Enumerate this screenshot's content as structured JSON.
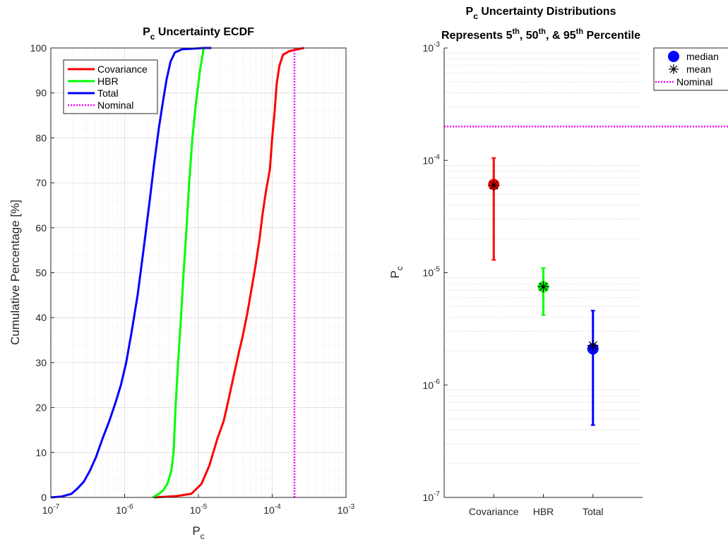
{
  "chart_data": [
    {
      "type": "line",
      "title": "P_c Uncertainty ECDF",
      "xlabel": "P_c",
      "ylabel": "Cumulative Percentage [%]",
      "xscale": "log",
      "xlim": [
        1e-07,
        0.001
      ],
      "ylim": [
        0,
        100
      ],
      "grid": true,
      "x_ticks": [
        "10^-7",
        "10^-6",
        "10^-5",
        "10^-4",
        "10^-3"
      ],
      "y_ticks": [
        "0",
        "10",
        "20",
        "30",
        "40",
        "50",
        "60",
        "70",
        "80",
        "90",
        "100"
      ],
      "legend_position": "top-left",
      "series": [
        {
          "name": "Covariance",
          "color": "#ff0000",
          "points": [
            [
              2.5e-06,
              0
            ],
            [
              5e-06,
              0.3
            ],
            [
              8e-06,
              0.8
            ],
            [
              1.1e-05,
              3
            ],
            [
              1.4e-05,
              7
            ],
            [
              1.8e-05,
              13
            ],
            [
              2.2e-05,
              17
            ],
            [
              2.5e-05,
              21
            ],
            [
              3e-05,
              27
            ],
            [
              3.5e-05,
              32
            ],
            [
              4e-05,
              36
            ],
            [
              4.6e-05,
              41
            ],
            [
              5.2e-05,
              46
            ],
            [
              6e-05,
              52
            ],
            [
              6.8e-05,
              58
            ],
            [
              7.4e-05,
              63
            ],
            [
              8.2e-05,
              68
            ],
            [
              9.3e-05,
              73
            ],
            [
              0.0001,
              80
            ],
            [
              0.000108,
              86
            ],
            [
              0.000115,
              92
            ],
            [
              0.000125,
              96
            ],
            [
              0.00014,
              98.5
            ],
            [
              0.00017,
              99.3
            ],
            [
              0.00022,
              99.7
            ],
            [
              0.00027,
              100
            ]
          ]
        },
        {
          "name": "HBR",
          "color": "#00ff00",
          "points": [
            [
              2.4e-06,
              0
            ],
            [
              2.9e-06,
              0.8
            ],
            [
              3.3e-06,
              1.5
            ],
            [
              3.8e-06,
              3
            ],
            [
              4.3e-06,
              6
            ],
            [
              4.6e-06,
              10
            ],
            [
              4.9e-06,
              20
            ],
            [
              5.3e-06,
              30
            ],
            [
              5.8e-06,
              40
            ],
            [
              6.3e-06,
              50
            ],
            [
              6.9e-06,
              60
            ],
            [
              7.5e-06,
              70
            ],
            [
              8.3e-06,
              80
            ],
            [
              9.3e-06,
              88
            ],
            [
              1.05e-05,
              95
            ],
            [
              1.18e-05,
              100
            ]
          ]
        },
        {
          "name": "Total",
          "color": "#0000ff",
          "points": [
            [
              1e-07,
              0
            ],
            [
              1.4e-07,
              0.2
            ],
            [
              1.9e-07,
              0.8
            ],
            [
              2.3e-07,
              2
            ],
            [
              2.8e-07,
              3.5
            ],
            [
              3.4e-07,
              6
            ],
            [
              4.1e-07,
              9
            ],
            [
              5e-07,
              13
            ],
            [
              6.2e-07,
              17
            ],
            [
              7.5e-07,
              21
            ],
            [
              8.9e-07,
              25
            ],
            [
              1.05e-06,
              30
            ],
            [
              1.25e-06,
              37
            ],
            [
              1.5e-06,
              45
            ],
            [
              1.8e-06,
              55
            ],
            [
              2.15e-06,
              65
            ],
            [
              2.5e-06,
              74
            ],
            [
              2.9e-06,
              82
            ],
            [
              3.3e-06,
              88
            ],
            [
              3.7e-06,
              93
            ],
            [
              4.2e-06,
              97
            ],
            [
              4.8e-06,
              99
            ],
            [
              6e-06,
              99.7
            ],
            [
              1.2e-05,
              100
            ],
            [
              1.5e-05,
              100
            ]
          ]
        },
        {
          "name": "Nominal",
          "color": "#ff00ff",
          "style": "dotted",
          "points": [
            [
              0.0002,
              0
            ],
            [
              0.0002,
              100
            ]
          ]
        }
      ]
    },
    {
      "type": "scatter",
      "title": "P_c Uncertainty Distributions",
      "subtitle": "Represents 5th, 50th, & 95th Percentile",
      "ylabel": "P_c",
      "yscale": "log",
      "ylim": [
        1e-07,
        0.001
      ],
      "categories": [
        "Covariance",
        "HBR",
        "Total"
      ],
      "y_ticks": [
        "10^-7",
        "10^-6",
        "10^-5",
        "10^-4",
        "10^-3"
      ],
      "grid": "y-minor",
      "legend_position": "top-right",
      "colors": [
        "#ff0000",
        "#00ff00",
        "#0000ff"
      ],
      "median": [
        6.1e-05,
        7.5e-06,
        2.1e-06
      ],
      "mean": [
        6e-05,
        7.5e-06,
        2.25e-06
      ],
      "p5": [
        1.3e-05,
        4.2e-06,
        4.4e-07
      ],
      "p95": [
        0.000105,
        1.1e-05,
        4.6e-06
      ],
      "nominal": 0.0002,
      "nominal_color": "#ff00ff",
      "legend": [
        "median",
        "mean",
        "Nominal"
      ]
    }
  ]
}
